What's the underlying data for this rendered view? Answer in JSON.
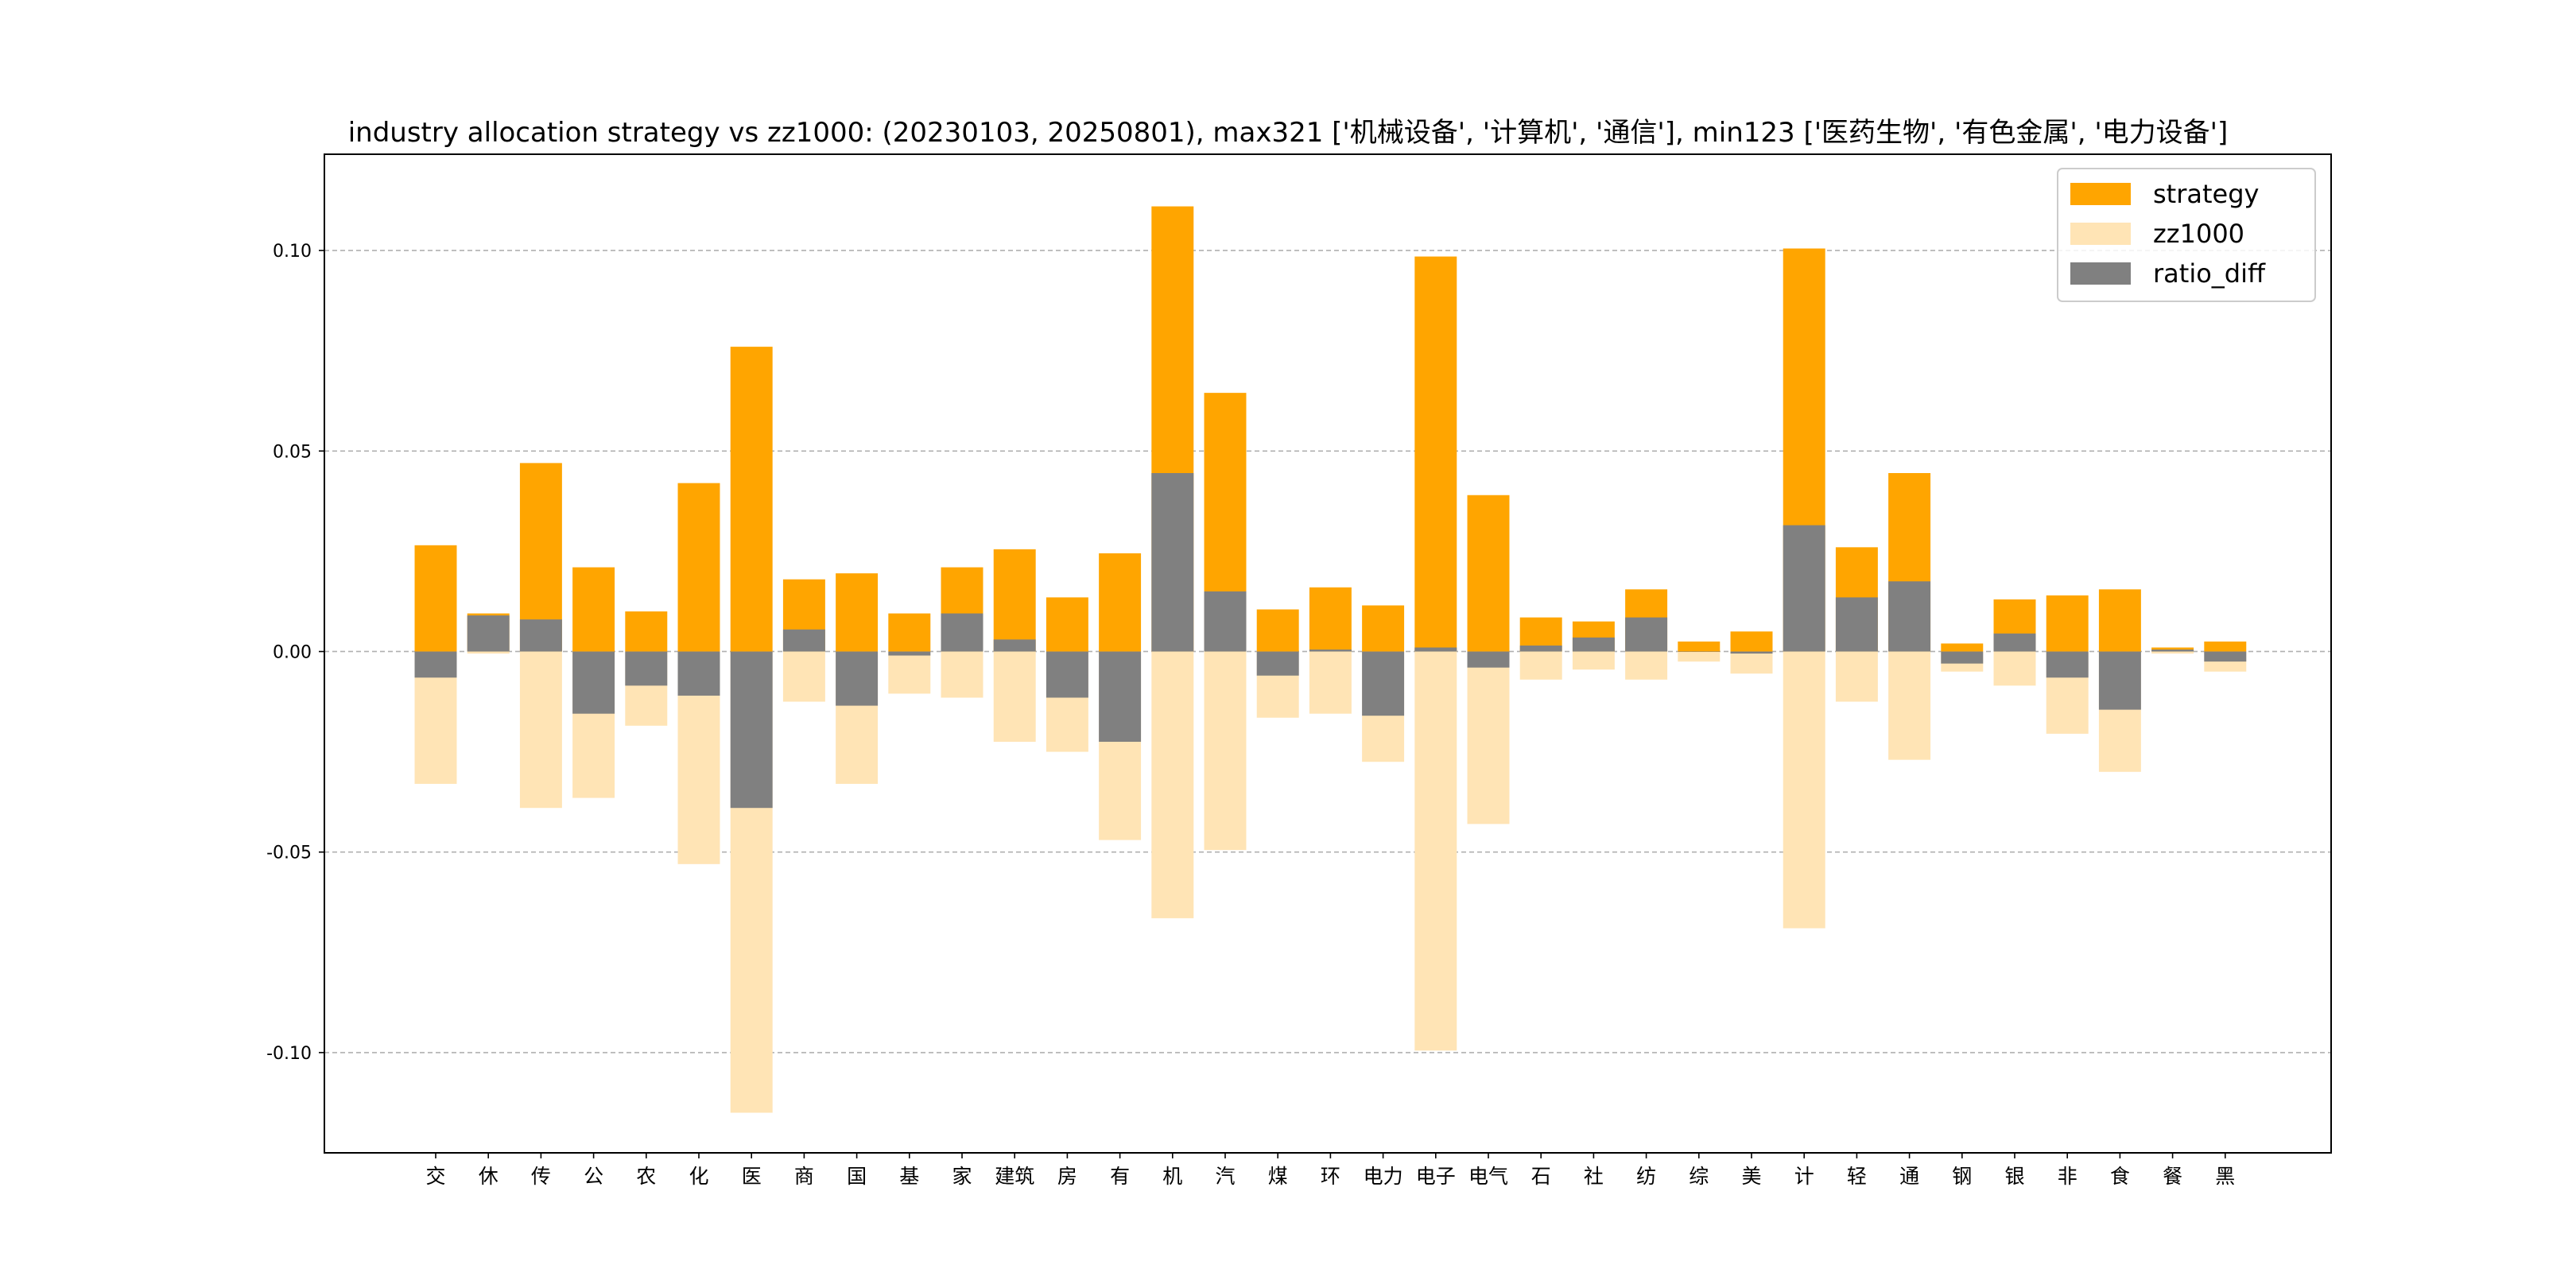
{
  "chart_data": {
    "type": "bar",
    "title": "industry allocation strategy vs zz1000: (20230103, 20250801), max321 ['机械设备', '计算机', '通信'], min123 ['医药生物', '有色金属', '电力设备']",
    "xlabel": "",
    "ylabel": "",
    "ylim": [
      -0.125,
      0.124
    ],
    "yticks": [
      -0.1,
      -0.05,
      0.0,
      0.05,
      0.1
    ],
    "ytick_labels": [
      "-0.10",
      "-0.05",
      "0.00",
      "0.05",
      "0.10"
    ],
    "grid": "horizontal-dashed",
    "legend_position": "top-right",
    "categories": [
      "交",
      "休",
      "传",
      "公",
      "农",
      "化",
      "医",
      "商",
      "国",
      "基",
      "家",
      "建筑",
      "房",
      "有",
      "机",
      "汽",
      "煤",
      "环",
      "电力",
      "电子",
      "电气",
      "石",
      "社",
      "纺",
      "综",
      "美",
      "计",
      "轻",
      "通",
      "钢",
      "银",
      "非",
      "食",
      "餐",
      "黑"
    ],
    "series": [
      {
        "name": "strategy",
        "color": "#FFA500",
        "values": [
          0.0265,
          0.0095,
          0.047,
          0.021,
          0.01,
          0.042,
          0.076,
          0.018,
          0.0195,
          0.0095,
          0.021,
          0.0255,
          0.0135,
          0.0245,
          0.111,
          0.0645,
          0.0105,
          0.016,
          0.0115,
          0.0985,
          0.039,
          0.0085,
          0.0075,
          0.0155,
          0.0025,
          0.005,
          0.1005,
          0.026,
          0.0445,
          0.002,
          0.013,
          0.014,
          0.0155,
          0.001,
          0.0025
        ]
      },
      {
        "name": "zz1000",
        "color": "#FFE4B5",
        "values": [
          -0.033,
          -0.0005,
          -0.039,
          -0.0365,
          -0.0185,
          -0.053,
          -0.115,
          -0.0125,
          -0.033,
          -0.0105,
          -0.0115,
          -0.0225,
          -0.025,
          -0.047,
          -0.0665,
          -0.0495,
          -0.0165,
          -0.0155,
          -0.0275,
          -0.0995,
          -0.043,
          -0.007,
          -0.0045,
          -0.007,
          -0.0025,
          -0.0055,
          -0.069,
          -0.0125,
          -0.027,
          -0.005,
          -0.0085,
          -0.0205,
          -0.03,
          -0.0005,
          -0.005
        ]
      },
      {
        "name": "ratio_diff",
        "color": "#808080",
        "values": [
          -0.0065,
          0.009,
          0.008,
          -0.0155,
          -0.0085,
          -0.011,
          -0.039,
          0.0055,
          -0.0135,
          -0.001,
          0.0095,
          0.003,
          -0.0115,
          -0.0225,
          0.0445,
          0.015,
          -0.006,
          0.0005,
          -0.016,
          0.001,
          -0.004,
          0.0015,
          0.0035,
          0.0085,
          0.0,
          -0.0005,
          0.0315,
          0.0135,
          0.0175,
          -0.003,
          0.0045,
          -0.0065,
          -0.0145,
          0.0005,
          -0.0025
        ]
      }
    ]
  }
}
